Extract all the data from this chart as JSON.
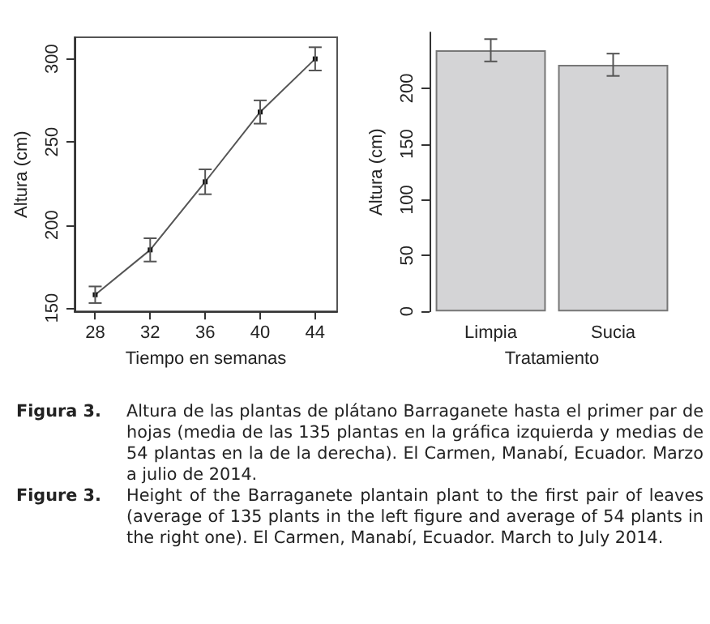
{
  "chart_data": [
    {
      "type": "line",
      "xlabel": "Tiempo en semanas",
      "ylabel": "Altura (cm)",
      "x": [
        28,
        32,
        36,
        40,
        44
      ],
      "values": [
        158,
        185,
        226,
        268,
        300
      ],
      "errors": [
        5,
        7,
        7.5,
        7,
        7
      ],
      "color": "#555555",
      "marker": "square",
      "xlim": [
        26.5,
        45.6
      ],
      "ylim": [
        148,
        313
      ],
      "xticks": [
        28,
        32,
        36,
        40,
        44
      ],
      "yticks": [
        150,
        200,
        250,
        300
      ],
      "annotations": [
        "Figura 3.",
        "Altura de las plantas de plátano Barraganete hasta el primer par de hojas (media de las 135 plantas en la gráfica izquierda y medias de 54 plantas en la de la derecha).  El Carmen, Manabí, Ecuador. Marzo a julio de 2014.",
        "Figure 3.",
        "Height of the Barraganete plantain plant to the first pair of leaves (average of 135 plants in the left figure and average of 54 plants in the right one). El Carmen, Manabí, Ecuador. March to July 2014."
      ]
    },
    {
      "type": "bar",
      "xlabel": "Tratamiento",
      "ylabel": "Altura (cm)",
      "categories": [
        "Limpia",
        "Sucia"
      ],
      "values": [
        234,
        221
      ],
      "errors": [
        10,
        10
      ],
      "color": "#d4d4d6",
      "ylim": [
        0,
        250
      ],
      "yticks": [
        0,
        50,
        100,
        150,
        200
      ]
    }
  ]
}
